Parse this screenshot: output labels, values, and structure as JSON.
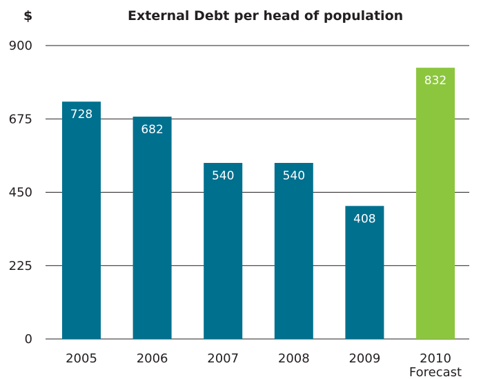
{
  "chart_data": {
    "type": "bar",
    "title": "External Debt per head of population",
    "ylabel": "$",
    "xlabel": "",
    "categories": [
      "2005",
      "2006",
      "2007",
      "2008",
      "2009",
      "2010"
    ],
    "category_sublabels": [
      "",
      "",
      "",
      "",
      "",
      "Forecast"
    ],
    "values": [
      728,
      682,
      540,
      540,
      408,
      832
    ],
    "data_labels": [
      "728",
      "682",
      "540",
      "540",
      "408",
      "832"
    ],
    "colors": [
      "#00708f",
      "#00708f",
      "#00708f",
      "#00708f",
      "#00708f",
      "#8cc63f"
    ],
    "ylim": [
      0,
      900
    ],
    "yticks": [
      0,
      225,
      450,
      675,
      900
    ],
    "ytick_labels": [
      "0",
      "225",
      "450",
      "675",
      "900"
    ],
    "grid": true,
    "legend": "none"
  }
}
